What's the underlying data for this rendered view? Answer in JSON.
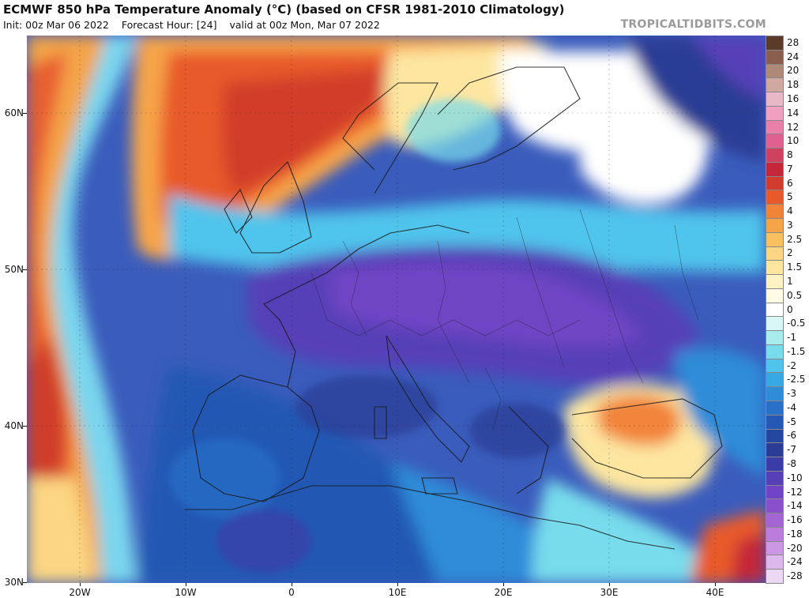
{
  "header": {
    "title": "ECMWF 850 hPa Temperature Anomaly (°C) (based on CFSR 1981-2010 Climatology)",
    "init": "Init: 00z Mar 06 2022",
    "forecast_hour": "Forecast Hour: [24]",
    "valid": "valid at 00z Mon, Mar 07 2022",
    "credit": "TROPICALTIDBITS.COM"
  },
  "axes": {
    "lat_labels": [
      "60N",
      "50N",
      "40N",
      "30N"
    ],
    "lon_labels": [
      "20W",
      "10W",
      "0",
      "10E",
      "20E",
      "30E",
      "40E"
    ]
  },
  "colorbar": {
    "labels": [
      "28",
      "24",
      "20",
      "18",
      "16",
      "14",
      "12",
      "10",
      "8",
      "7",
      "6",
      "5",
      "4",
      "3",
      "2.5",
      "2",
      "1.5",
      "1",
      "0.5",
      "0",
      "-0.5",
      "-1",
      "-1.5",
      "-2",
      "-2.5",
      "-3",
      "-4",
      "-5",
      "-6",
      "-7",
      "-8",
      "-10",
      "-12",
      "-14",
      "-16",
      "-18",
      "-20",
      "-24",
      "-28"
    ],
    "colors": [
      "#5a3a28",
      "#8a5e4c",
      "#b08878",
      "#cfa8a0",
      "#e8b8c8",
      "#f0a0c0",
      "#e880a8",
      "#e06090",
      "#d04060",
      "#c42838",
      "#d23c2c",
      "#e85a2c",
      "#f2843a",
      "#f6a44a",
      "#f9c060",
      "#fcd682",
      "#fde6a0",
      "#fdf2c4",
      "#fffbe4",
      "#ffffff",
      "#d8f6f6",
      "#a8ecee",
      "#78dcec",
      "#50c4ec",
      "#38a8e4",
      "#2e8cd8",
      "#2870c8",
      "#2458b4",
      "#2448a0",
      "#2a3c94",
      "#3c3ca8",
      "#5640b8",
      "#7044c4",
      "#8a50cc",
      "#a464d4",
      "#bc7cdc",
      "#cc98e4",
      "#dcb8ec",
      "#ecd8f4"
    ]
  }
}
